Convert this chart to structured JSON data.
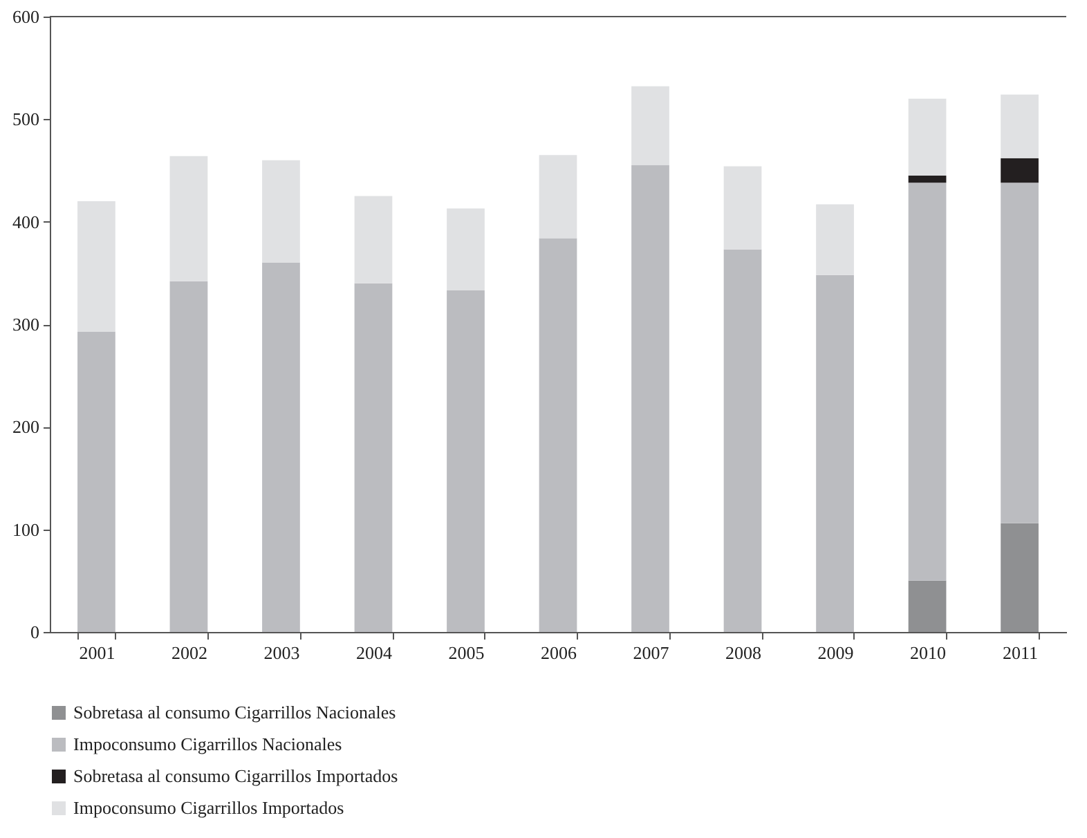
{
  "chart_data": {
    "type": "bar",
    "stacked": true,
    "categories": [
      "2001",
      "2002",
      "2003",
      "2004",
      "2005",
      "2006",
      "2007",
      "2008",
      "2009",
      "2010",
      "2011"
    ],
    "series": [
      {
        "name": "Sobretasa al consumo Cigarrillos Nacionales",
        "color": "#8f9092",
        "values": [
          0,
          0,
          0,
          0,
          0,
          0,
          0,
          0,
          0,
          50,
          106
        ]
      },
      {
        "name": "Impoconsumo Cigarrillos Nacionales",
        "color": "#bbbcc0",
        "values": [
          293,
          342,
          360,
          340,
          333,
          384,
          455,
          373,
          348,
          388,
          332
        ]
      },
      {
        "name": "Sobretasa al consumo Cigarrillos Importados",
        "color": "#231f20",
        "values": [
          0,
          0,
          0,
          0,
          0,
          0,
          0,
          0,
          0,
          7,
          24
        ]
      },
      {
        "name": "Impoconsumo Cigarrillos Importados",
        "color": "#e0e1e3",
        "values": [
          127,
          122,
          100,
          85,
          80,
          81,
          77,
          81,
          69,
          75,
          62
        ]
      }
    ],
    "ylim": [
      0,
      600
    ],
    "yticks": [
      0,
      100,
      200,
      300,
      400,
      500,
      600
    ],
    "grid": false,
    "legend": "bottom"
  }
}
